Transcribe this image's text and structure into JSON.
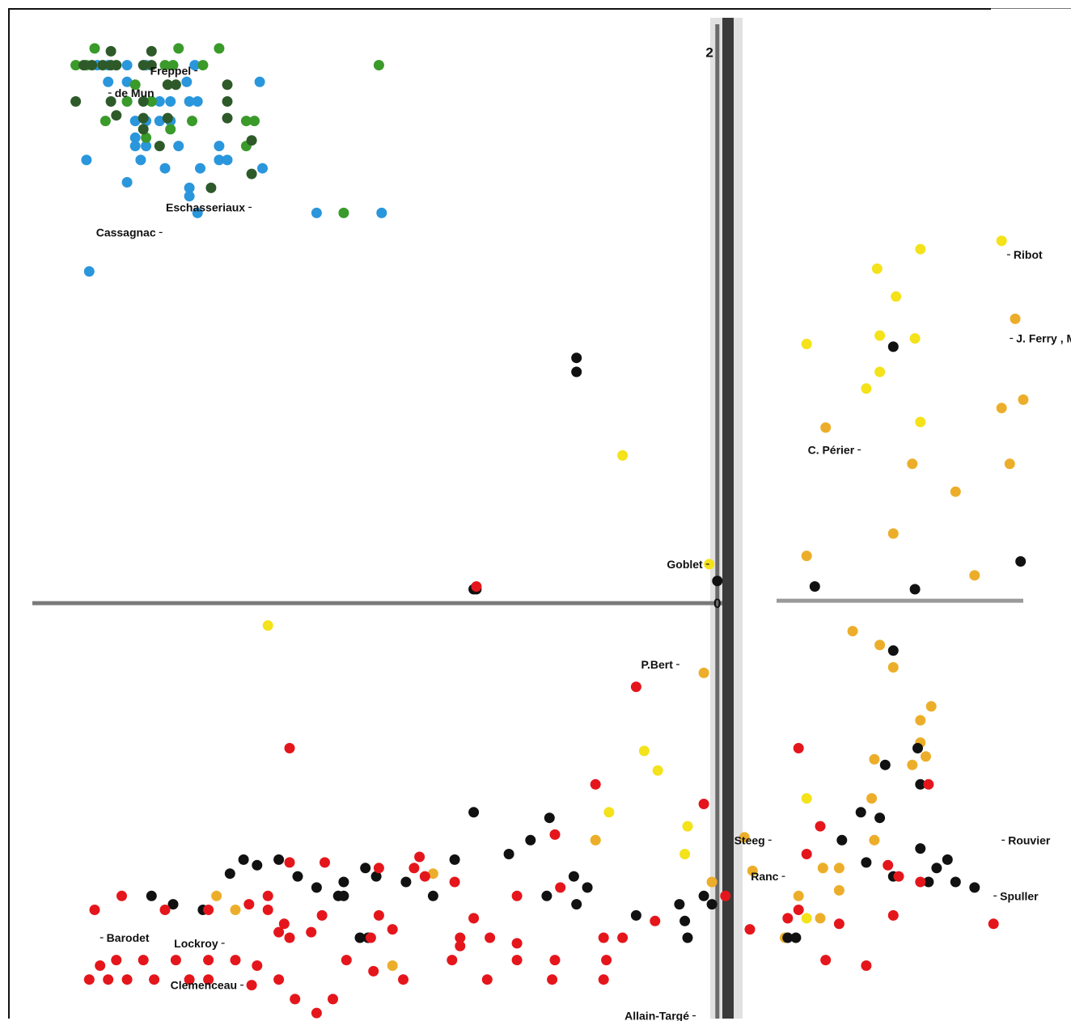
{
  "chart_data": {
    "type": "scatter",
    "title": "",
    "xlabel": "",
    "ylabel": "",
    "xlim": [
      -2.53,
      1.13
    ],
    "ylim": [
      -1.49,
      2.1
    ],
    "grid": false,
    "y_tick_labels": [
      {
        "value": 2,
        "label": "2"
      },
      {
        "value": 0,
        "label": "0"
      }
    ],
    "colors": {
      "blue": "#2a96dc",
      "green": "#3a9a2a",
      "dark_green": "#2e5a2a",
      "yellow": "#f4e21a",
      "orange": "#ecae2a",
      "black": "#111111",
      "red": "#e4161c"
    },
    "series": [
      {
        "color": "blue",
        "points": [
          [
            -2.29,
            1.93
          ],
          [
            -2.25,
            1.93
          ],
          [
            -2.18,
            1.93
          ],
          [
            -2.11,
            1.93
          ],
          [
            -2.25,
            1.87
          ],
          [
            -2.18,
            1.87
          ],
          [
            -1.69,
            1.87
          ],
          [
            -2.18,
            1.8
          ],
          [
            -2.09,
            1.8
          ],
          [
            -2.02,
            1.8
          ],
          [
            -1.95,
            1.8
          ],
          [
            -1.92,
            1.8
          ],
          [
            -2.06,
            1.8
          ],
          [
            -2.15,
            1.73
          ],
          [
            -2.11,
            1.73
          ],
          [
            -2.06,
            1.73
          ],
          [
            -2.02,
            1.73
          ],
          [
            -2.15,
            1.67
          ],
          [
            -2.15,
            1.64
          ],
          [
            -2.11,
            1.64
          ],
          [
            -1.99,
            1.64
          ],
          [
            -1.84,
            1.64
          ],
          [
            -2.33,
            1.59
          ],
          [
            -2.13,
            1.59
          ],
          [
            -2.04,
            1.56
          ],
          [
            -1.91,
            1.56
          ],
          [
            -1.81,
            1.59
          ],
          [
            -1.68,
            1.56
          ],
          [
            -2.18,
            1.51
          ],
          [
            -1.95,
            1.49
          ],
          [
            -1.95,
            1.46
          ],
          [
            -1.92,
            1.4
          ],
          [
            -1.48,
            1.4
          ],
          [
            -1.24,
            1.4
          ],
          [
            -2.32,
            1.19
          ],
          [
            -1.84,
            1.59
          ],
          [
            -1.96,
            1.87
          ],
          [
            -1.93,
            1.93
          ]
        ]
      },
      {
        "color": "green",
        "points": [
          [
            -2.37,
            1.93
          ],
          [
            -2.33,
            1.93
          ],
          [
            -2.04,
            1.93
          ],
          [
            -2.01,
            1.93
          ],
          [
            -2.3,
            1.99
          ],
          [
            -1.99,
            1.99
          ],
          [
            -1.84,
            1.99
          ],
          [
            -1.25,
            1.93
          ],
          [
            -2.18,
            1.8
          ],
          [
            -2.09,
            1.8
          ],
          [
            -1.74,
            1.73
          ],
          [
            -1.71,
            1.73
          ],
          [
            -1.94,
            1.73
          ],
          [
            -2.11,
            1.67
          ],
          [
            -2.26,
            1.73
          ],
          [
            -2.02,
            1.7
          ],
          [
            -1.74,
            1.64
          ],
          [
            -1.38,
            1.4
          ],
          [
            -2.15,
            1.86
          ],
          [
            -1.9,
            1.93
          ]
        ]
      },
      {
        "color": "dark_green",
        "points": [
          [
            -2.34,
            1.93
          ],
          [
            -2.31,
            1.93
          ],
          [
            -2.27,
            1.93
          ],
          [
            -2.24,
            1.93
          ],
          [
            -2.22,
            1.93
          ],
          [
            -2.12,
            1.93
          ],
          [
            -2.09,
            1.93
          ],
          [
            -2.24,
            1.98
          ],
          [
            -2.09,
            1.98
          ],
          [
            -2.03,
            1.86
          ],
          [
            -2.0,
            1.86
          ],
          [
            -1.81,
            1.86
          ],
          [
            -2.24,
            1.8
          ],
          [
            -2.12,
            1.8
          ],
          [
            -1.81,
            1.8
          ],
          [
            -2.37,
            1.8
          ],
          [
            -2.22,
            1.75
          ],
          [
            -2.12,
            1.74
          ],
          [
            -2.03,
            1.74
          ],
          [
            -1.81,
            1.74
          ],
          [
            -2.12,
            1.7
          ],
          [
            -1.72,
            1.66
          ],
          [
            -2.06,
            1.64
          ],
          [
            -1.87,
            1.49
          ],
          [
            -1.72,
            1.54
          ]
        ]
      },
      {
        "color": "yellow",
        "points": [
          [
            -1.66,
            -0.08
          ],
          [
            -0.35,
            0.53
          ],
          [
            -0.03,
            0.14
          ],
          [
            0.59,
            1.2
          ],
          [
            0.66,
            1.1
          ],
          [
            0.6,
            0.96
          ],
          [
            0.6,
            0.83
          ],
          [
            0.75,
            1.27
          ],
          [
            0.73,
            0.95
          ],
          [
            0.75,
            0.65
          ],
          [
            1.05,
            1.3
          ],
          [
            0.33,
            0.93
          ],
          [
            0.55,
            0.77
          ],
          [
            -0.27,
            -0.53
          ],
          [
            -0.11,
            -0.8
          ],
          [
            -0.12,
            -0.9
          ],
          [
            0.33,
            -0.7
          ],
          [
            0.39,
            -0.95
          ],
          [
            -0.22,
            -0.6
          ],
          [
            0.33,
            -1.13
          ],
          [
            -0.45,
            -0.85
          ],
          [
            -0.4,
            -0.75
          ]
        ]
      },
      {
        "color": "orange",
        "points": [
          [
            0.4,
            0.63
          ],
          [
            0.33,
            0.17
          ],
          [
            -0.05,
            -0.25
          ],
          [
            0.5,
            -0.1
          ],
          [
            0.6,
            -0.15
          ],
          [
            0.65,
            0.25
          ],
          [
            0.72,
            0.5
          ],
          [
            0.75,
            -0.5
          ],
          [
            0.77,
            -0.55
          ],
          [
            0.65,
            -0.23
          ],
          [
            0.72,
            -0.58
          ],
          [
            0.57,
            -0.7
          ],
          [
            0.58,
            -0.85
          ],
          [
            0.45,
            -0.95
          ],
          [
            0.25,
            -1.2
          ],
          [
            0.38,
            -1.13
          ],
          [
            0.3,
            -1.05
          ],
          [
            0.1,
            -0.84
          ],
          [
            0.13,
            -0.96
          ],
          [
            -0.02,
            -1.0
          ],
          [
            -0.45,
            -0.85
          ],
          [
            0.39,
            -0.95
          ],
          [
            0.45,
            -1.03
          ],
          [
            1.1,
            1.02
          ],
          [
            1.13,
            0.73
          ],
          [
            0.88,
            0.4
          ],
          [
            0.95,
            0.1
          ],
          [
            1.05,
            0.7
          ],
          [
            1.08,
            0.5
          ],
          [
            0.79,
            -0.37
          ],
          [
            0.75,
            -0.42
          ],
          [
            0.58,
            -0.56
          ],
          [
            -1.05,
            -0.97
          ],
          [
            -1.78,
            -1.1
          ],
          [
            -1.85,
            -1.05
          ],
          [
            -1.2,
            -1.3
          ]
        ]
      },
      {
        "color": "black",
        "points": [
          [
            -0.52,
            0.83
          ],
          [
            -0.52,
            0.88
          ],
          [
            -0.9,
            0.05
          ],
          [
            -0.89,
            0.05
          ],
          [
            0.0,
            0.08
          ],
          [
            0.36,
            0.06
          ],
          [
            0.65,
            0.92
          ],
          [
            1.12,
            0.15
          ],
          [
            0.62,
            -0.58
          ],
          [
            0.53,
            -0.75
          ],
          [
            0.46,
            -0.85
          ],
          [
            0.55,
            -0.93
          ],
          [
            0.65,
            -0.98
          ],
          [
            0.78,
            -1.0
          ],
          [
            0.81,
            -0.95
          ],
          [
            0.85,
            -0.92
          ],
          [
            0.88,
            -1.0
          ],
          [
            0.95,
            -1.02
          ],
          [
            0.73,
            0.05
          ],
          [
            0.65,
            -0.17
          ],
          [
            0.74,
            -0.52
          ],
          [
            0.75,
            -0.65
          ],
          [
            0.6,
            -0.77
          ],
          [
            0.75,
            -0.88
          ],
          [
            -0.9,
            -0.75
          ],
          [
            -0.62,
            -0.77
          ],
          [
            -1.05,
            -1.05
          ],
          [
            -1.15,
            -1.0
          ],
          [
            -1.26,
            -0.98
          ],
          [
            -1.3,
            -0.95
          ],
          [
            -1.38,
            -1.0
          ],
          [
            -1.48,
            -1.02
          ],
          [
            -1.55,
            -0.98
          ],
          [
            -1.62,
            -0.92
          ],
          [
            -1.7,
            -0.94
          ],
          [
            -1.75,
            -0.92
          ],
          [
            -1.8,
            -0.97
          ],
          [
            -1.9,
            -1.1
          ],
          [
            -2.01,
            -1.08
          ],
          [
            -2.09,
            -1.05
          ],
          [
            -0.97,
            -0.92
          ],
          [
            -0.77,
            -0.9
          ],
          [
            -0.69,
            -0.85
          ],
          [
            -0.53,
            -0.98
          ],
          [
            -0.48,
            -1.02
          ],
          [
            -0.63,
            -1.05
          ],
          [
            -0.52,
            -1.08
          ],
          [
            -0.3,
            -1.12
          ],
          [
            -0.14,
            -1.08
          ],
          [
            -0.02,
            -1.08
          ],
          [
            -0.05,
            -1.05
          ],
          [
            -0.12,
            -1.14
          ],
          [
            -0.11,
            -1.2
          ],
          [
            -1.4,
            -1.05
          ],
          [
            -1.38,
            -1.05
          ],
          [
            -1.32,
            -1.2
          ],
          [
            -1.29,
            -1.2
          ],
          [
            0.29,
            -1.2
          ],
          [
            0.26,
            -1.2
          ]
        ]
      },
      {
        "color": "red",
        "points": [
          [
            -0.89,
            0.06
          ],
          [
            -0.3,
            -0.3
          ],
          [
            0.3,
            -0.52
          ],
          [
            0.75,
            -1.0
          ],
          [
            0.78,
            -0.65
          ],
          [
            0.38,
            -0.8
          ],
          [
            0.33,
            -0.9
          ],
          [
            -0.45,
            -0.65
          ],
          [
            -0.05,
            -0.72
          ],
          [
            -0.6,
            -0.83
          ],
          [
            -1.1,
            -0.91
          ],
          [
            -1.58,
            -0.52
          ],
          [
            -1.58,
            -0.93
          ],
          [
            -1.45,
            -0.93
          ],
          [
            -2.2,
            -1.05
          ],
          [
            -2.3,
            -1.1
          ],
          [
            -2.04,
            -1.1
          ],
          [
            -1.88,
            -1.1
          ],
          [
            -1.73,
            -1.08
          ],
          [
            -1.66,
            -1.05
          ],
          [
            -1.66,
            -1.1
          ],
          [
            -1.6,
            -1.15
          ],
          [
            -1.46,
            -1.12
          ],
          [
            -1.5,
            -1.18
          ],
          [
            -1.62,
            -1.18
          ],
          [
            -1.7,
            -1.3
          ],
          [
            -1.78,
            -1.28
          ],
          [
            -1.88,
            -1.28
          ],
          [
            -2.0,
            -1.28
          ],
          [
            -2.12,
            -1.28
          ],
          [
            -2.22,
            -1.28
          ],
          [
            -2.28,
            -1.3
          ],
          [
            -2.32,
            -1.35
          ],
          [
            -2.25,
            -1.35
          ],
          [
            -2.18,
            -1.35
          ],
          [
            -2.08,
            -1.35
          ],
          [
            -1.95,
            -1.35
          ],
          [
            -1.88,
            -1.35
          ],
          [
            -1.72,
            -1.37
          ],
          [
            -1.62,
            -1.35
          ],
          [
            -1.56,
            -1.42
          ],
          [
            -1.48,
            -1.47
          ],
          [
            -1.42,
            -1.42
          ],
          [
            -1.58,
            -1.2
          ],
          [
            -1.25,
            -1.12
          ],
          [
            -0.95,
            -1.2
          ],
          [
            -0.9,
            -1.13
          ],
          [
            -0.98,
            -1.28
          ],
          [
            -0.74,
            -1.22
          ],
          [
            -0.74,
            -1.28
          ],
          [
            -0.84,
            -1.2
          ],
          [
            -0.6,
            -1.28
          ],
          [
            -0.61,
            -1.35
          ],
          [
            -0.41,
            -1.28
          ],
          [
            -0.42,
            -1.35
          ],
          [
            -0.85,
            -1.35
          ],
          [
            -0.95,
            -1.23
          ],
          [
            -1.37,
            -1.28
          ],
          [
            -1.27,
            -1.32
          ],
          [
            -1.16,
            -1.35
          ],
          [
            0.12,
            -1.17
          ],
          [
            0.26,
            -1.13
          ],
          [
            1.02,
            -1.15
          ],
          [
            0.3,
            -1.1
          ],
          [
            -0.74,
            -1.05
          ],
          [
            -0.58,
            -1.02
          ],
          [
            0.45,
            -1.15
          ],
          [
            0.65,
            -1.12
          ],
          [
            -1.25,
            -0.95
          ],
          [
            -1.12,
            -0.95
          ],
          [
            -0.97,
            -1.0
          ],
          [
            -0.23,
            -1.14
          ],
          [
            0.03,
            -1.05
          ],
          [
            0.4,
            -1.28
          ],
          [
            0.55,
            -1.3
          ],
          [
            -1.08,
            -0.98
          ],
          [
            -1.28,
            -1.2
          ],
          [
            -1.2,
            -1.17
          ],
          [
            -0.42,
            -1.2
          ],
          [
            -0.35,
            -1.2
          ],
          [
            0.67,
            -0.98
          ],
          [
            0.63,
            -0.94
          ]
        ]
      }
    ],
    "annotations": [
      {
        "label": "Freppel",
        "x": -1.92,
        "y": 1.91
      },
      {
        "label": "de Mun",
        "x": -2.25,
        "y": 1.83
      },
      {
        "label": "Eschasseriaux",
        "x": -1.72,
        "y": 1.42
      },
      {
        "label": "Cassagnac",
        "x": -2.05,
        "y": 1.33
      },
      {
        "label": "Ribot",
        "x": 1.07,
        "y": 1.25
      },
      {
        "label": "J. Ferry , Méline",
        "x": 1.08,
        "y": 0.95
      },
      {
        "label": "C. Périer",
        "x": 0.53,
        "y": 0.55
      },
      {
        "label": "Goblet",
        "x": -0.03,
        "y": 0.14
      },
      {
        "label": "P.Bert",
        "x": -0.14,
        "y": -0.22
      },
      {
        "label": "Rouvier",
        "x": 1.05,
        "y": -0.85
      },
      {
        "label": "Steeg",
        "x": 0.2,
        "y": -0.85
      },
      {
        "label": "Ranc",
        "x": 0.25,
        "y": -0.98
      },
      {
        "label": "Spuller",
        "x": 1.02,
        "y": -1.05
      },
      {
        "label": "Barodet",
        "x": -2.28,
        "y": -1.2
      },
      {
        "label": "Lockroy",
        "x": -1.82,
        "y": -1.22
      },
      {
        "label": "Clemenceau",
        "x": -1.75,
        "y": -1.37
      },
      {
        "label": "Allain-Targé",
        "x": -0.08,
        "y": -1.48
      }
    ]
  }
}
